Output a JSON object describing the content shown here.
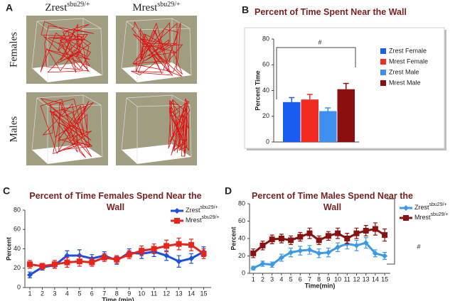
{
  "figure": {
    "panels": [
      "A",
      "B",
      "C",
      "D"
    ],
    "panel_a": {
      "columns": [
        {
          "name": "Zrest",
          "superscript": "sbu29/+"
        },
        {
          "name": "Mrest",
          "superscript": "sbu29/+"
        }
      ],
      "rows": [
        "Females",
        "Males"
      ]
    }
  },
  "chart_data": [
    {
      "type": "bar",
      "title": "Percent of Time Spent Near the Wall",
      "y_label": "Percent Time",
      "categories": [
        "Zrest Female",
        "Mrest Female",
        "Zrest Male",
        "Mrest Male"
      ],
      "values": [
        31,
        33,
        24,
        41
      ],
      "errors": [
        3.5,
        4,
        2.5,
        4.5
      ],
      "colors": [
        "#1a5cf0",
        "#f22a1f",
        "#3d8ff0",
        "#8b0f0f"
      ],
      "ylim": [
        0,
        80
      ],
      "yticks": [
        0,
        20,
        40,
        60,
        80
      ],
      "annotations": [
        "#"
      ]
    },
    {
      "type": "line",
      "title": "Percent of Time Females Spend Near the Wall",
      "x_label": "Time (min)",
      "y_label": "Percent",
      "x": [
        1,
        2,
        3,
        4,
        5,
        6,
        7,
        8,
        9,
        10,
        11,
        12,
        13,
        14,
        15
      ],
      "xlim": [
        0.6,
        15.6
      ],
      "xticks": [
        1,
        2,
        3,
        4,
        5,
        6,
        7,
        8,
        9,
        10,
        11,
        12,
        13,
        14,
        15
      ],
      "ylim": [
        0,
        80
      ],
      "yticks": [
        0,
        20,
        40,
        60,
        80
      ],
      "series": [
        {
          "name": "Zrest",
          "name_superscript": "sbu29/+",
          "color": "#1a4fe0",
          "marker": "diamond",
          "values": [
            13,
            21,
            23,
            33,
            33,
            30,
            33,
            28,
            36,
            35,
            37,
            33,
            27,
            30,
            37
          ],
          "errors": [
            3,
            3,
            3,
            5,
            6,
            4,
            4,
            4,
            4,
            5,
            5,
            5,
            6,
            5,
            5
          ]
        },
        {
          "name": "Mrest",
          "name_superscript": "sbu29/+",
          "color": "#e8231a",
          "marker": "square",
          "values": [
            24,
            22,
            24,
            26,
            27,
            26,
            31,
            29,
            34,
            38,
            40,
            43,
            45,
            44,
            35
          ],
          "errors": [
            4,
            3,
            4,
            5,
            5,
            4,
            4,
            4,
            4,
            5,
            5,
            6,
            6,
            6,
            5
          ]
        }
      ]
    },
    {
      "type": "line",
      "title": "Percent of Time Males Spend Near  the Wall",
      "x_label": "Time(min)",
      "y_label": "Percent",
      "x": [
        1,
        2,
        3,
        4,
        5,
        6,
        7,
        8,
        9,
        10,
        11,
        12,
        13,
        14,
        15
      ],
      "xlim": [
        0.6,
        15.6
      ],
      "xticks": [
        1,
        2,
        3,
        4,
        5,
        6,
        7,
        8,
        9,
        10,
        11,
        12,
        13,
        14,
        15
      ],
      "ylim": [
        0,
        80
      ],
      "yticks": [
        0,
        20,
        40,
        60,
        80
      ],
      "series": [
        {
          "name": "Zrest",
          "name_superscript": "sbu29/+",
          "color": "#3b9ae8",
          "marker": "diamond",
          "values": [
            6,
            11,
            10,
            18,
            24,
            26,
            27,
            23,
            24,
            30,
            34,
            32,
            35,
            23,
            20
          ],
          "errors": [
            2,
            3,
            3,
            4,
            5,
            5,
            5,
            5,
            5,
            5,
            6,
            6,
            6,
            4,
            4
          ]
        },
        {
          "name": "Mrest",
          "name_superscript": "sbu29/+",
          "color": "#8b1010",
          "marker": "square",
          "values": [
            23,
            32,
            39,
            40,
            38,
            42,
            46,
            38,
            43,
            46,
            40,
            46,
            49,
            51,
            44
          ],
          "errors": [
            5,
            5,
            5,
            5,
            5,
            5,
            6,
            5,
            5,
            6,
            6,
            6,
            6,
            7,
            7
          ]
        }
      ],
      "annotations": [
        "#"
      ]
    }
  ]
}
